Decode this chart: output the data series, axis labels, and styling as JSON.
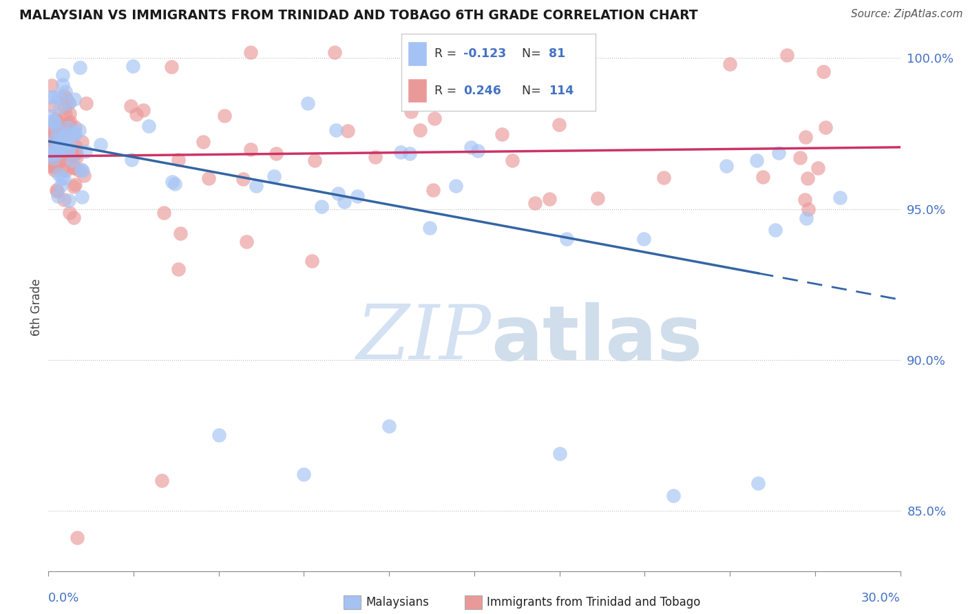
{
  "title": "MALAYSIAN VS IMMIGRANTS FROM TRINIDAD AND TOBAGO 6TH GRADE CORRELATION CHART",
  "source_text": "Source: ZipAtlas.com",
  "ylabel": "6th Grade",
  "xlim": [
    0.0,
    0.3
  ],
  "ylim": [
    0.83,
    1.005
  ],
  "yticks": [
    0.85,
    0.9,
    0.95,
    1.0
  ],
  "ytick_labels": [
    "85.0%",
    "90.0%",
    "95.0%",
    "100.0%"
  ],
  "blue_R": -0.123,
  "blue_N": 81,
  "pink_R": 0.246,
  "pink_N": 114,
  "blue_color": "#a4c2f4",
  "pink_color": "#ea9999",
  "blue_line_color": "#3465a4",
  "pink_line_color": "#cc3366",
  "legend_label_blue": "Malaysians",
  "legend_label_pink": "Immigrants from Trinidad and Tobago",
  "title_color": "#1a1a1a",
  "axis_label_color": "#4472c4",
  "watermark_color": "#ccdcf0"
}
